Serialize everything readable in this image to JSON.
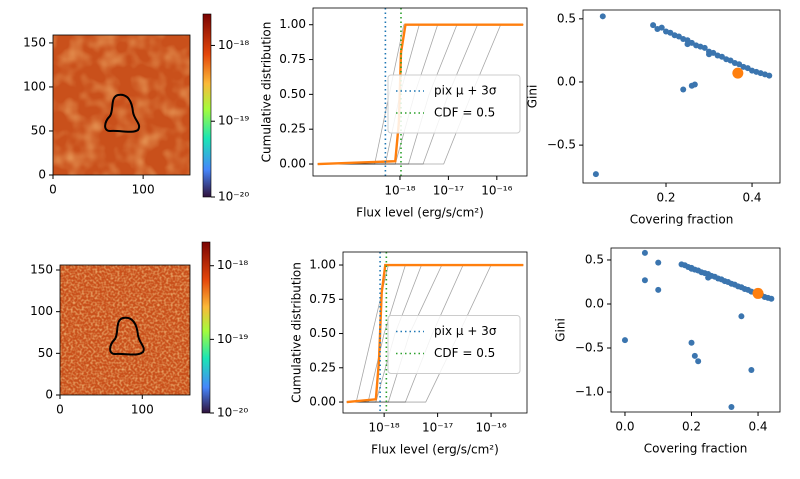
{
  "chart_data": [
    {
      "type": "heatmap",
      "xlim": [
        0,
        152
      ],
      "ylim": [
        0,
        159
      ],
      "xticks": [
        0,
        100
      ],
      "yticks": [
        0,
        50,
        100,
        150
      ],
      "colorbar": {
        "log": true,
        "lim": [
          1e-20,
          2.6e-18
        ],
        "ticks": [
          {
            "value": 1e-18,
            "label": "10⁻¹⁸"
          },
          {
            "value": 1e-19,
            "label": "10⁻¹⁹"
          },
          {
            "value": 1e-20,
            "label": "10⁻²⁰"
          }
        ]
      }
    },
    {
      "type": "line",
      "xlabel": "Flux level (erg/s/cm²)",
      "ylabel": "Cumulative distribution",
      "xlog": true,
      "xlim": [
        1.6e-20,
        4.2e-16
      ],
      "ylim": [
        -0.086,
        1.12
      ],
      "xticks": [
        {
          "value": 1e-18,
          "label": "10⁻¹⁸"
        },
        {
          "value": 1e-17,
          "label": "10⁻¹⁷"
        },
        {
          "value": 1e-16,
          "label": "10⁻¹⁶"
        }
      ],
      "yticks": [
        {
          "value": 0,
          "label": "0.00"
        },
        {
          "value": 0.25,
          "label": "0.25"
        },
        {
          "value": 0.5,
          "label": "0.50"
        },
        {
          "value": 0.75,
          "label": "0.75"
        },
        {
          "value": 1,
          "label": "1.00"
        }
      ],
      "series": [
        {
          "color": "#000000",
          "x": [
            2e-20,
            3e-19,
            6e-19,
            1.2e-18,
            3.5e-16
          ],
          "values": [
            0,
            0,
            0.5,
            1,
            1
          ]
        },
        {
          "color": "#000000",
          "x": [
            2e-20,
            5e-19,
            1e-18,
            2.5e-18,
            3.5e-16
          ],
          "values": [
            0,
            0,
            0.5,
            1,
            1
          ]
        },
        {
          "color": "#000000",
          "x": [
            2e-20,
            8e-19,
            2e-18,
            6e-18,
            3.5e-16
          ],
          "values": [
            0,
            0,
            0.5,
            1,
            1
          ]
        },
        {
          "color": "#000000",
          "x": [
            2e-20,
            1.5e-18,
            4e-18,
            1.5e-17,
            3.5e-16
          ],
          "values": [
            0,
            0,
            0.5,
            1,
            1
          ]
        },
        {
          "color": "#000000",
          "x": [
            2e-20,
            3e-18,
            1e-17,
            4e-17,
            3.5e-16
          ],
          "values": [
            0,
            0,
            0.5,
            1,
            1
          ]
        },
        {
          "color": "#000000",
          "x": [
            2e-20,
            8e-18,
            3e-17,
            1.2e-16,
            3.5e-16
          ],
          "values": [
            0,
            0,
            0.5,
            1,
            1
          ]
        },
        {
          "color": "#ff7f0e",
          "x": [
            2e-20,
            8e-19,
            9.5e-19,
            1.05e-18,
            1.3e-18,
            3.5e-16
          ],
          "values": [
            0,
            0.02,
            0.3,
            0.8,
            1,
            1
          ]
        }
      ],
      "vlines": [
        {
          "name": "pix μ + 3σ",
          "color": "#1f77b4",
          "x": 5e-19
        },
        {
          "name": "CDF  = 0.5",
          "color": "#2ca02c",
          "x": 1.05e-18
        }
      ],
      "legend": "center right"
    },
    {
      "type": "scatter",
      "xlabel": "Covering fraction",
      "ylabel": "Gini",
      "xlim": [
        0.007,
        0.465
      ],
      "ylim": [
        -0.8,
        0.57
      ],
      "xticks": [
        0.2,
        0.4
      ],
      "yticks": [
        0.5,
        {
          "value": 0,
          "label": "0.0"
        },
        {
          "value": -0.5,
          "label": "−0.5"
        }
      ],
      "series": [
        {
          "color": "#3b75af",
          "x": [
            0.17,
            0.18,
            0.19,
            0.2,
            0.21,
            0.22,
            0.23,
            0.24,
            0.25,
            0.26,
            0.27,
            0.28,
            0.29,
            0.3,
            0.31,
            0.32,
            0.33,
            0.34,
            0.35,
            0.36,
            0.37,
            0.38,
            0.39,
            0.4,
            0.41,
            0.42,
            0.43,
            0.44,
            0.25,
            0.3,
            0.037,
            0.053,
            0.24,
            0.267,
            0.26
          ],
          "values": [
            0.45,
            0.42,
            0.43,
            0.4,
            0.39,
            0.37,
            0.36,
            0.34,
            0.33,
            0.31,
            0.29,
            0.28,
            0.27,
            0.24,
            0.23,
            0.21,
            0.2,
            0.18,
            0.17,
            0.15,
            0.14,
            0.12,
            0.11,
            0.09,
            0.08,
            0.07,
            0.06,
            0.05,
            0.3,
            0.22,
            -0.73,
            0.52,
            -0.06,
            -0.02,
            -0.03
          ]
        },
        {
          "color": "#ff7f0e",
          "x": [
            0.367
          ],
          "values": [
            0.07
          ]
        }
      ]
    },
    {
      "type": "heatmap",
      "xlim": [
        0,
        158
      ],
      "ylim": [
        0,
        156
      ],
      "xticks": [
        0,
        100
      ],
      "yticks": [
        0,
        50,
        100,
        150
      ],
      "colorbar": {
        "log": true,
        "lim": [
          1e-20,
          2.1e-18
        ],
        "ticks": [
          {
            "value": 1e-18,
            "label": "10⁻¹⁸"
          },
          {
            "value": 1e-19,
            "label": "10⁻¹⁹"
          },
          {
            "value": 1e-20,
            "label": "10⁻²⁰"
          }
        ]
      }
    },
    {
      "type": "line",
      "xlabel": "Flux level (erg/s/cm²)",
      "ylabel": "Cumulative distribution",
      "xlog": true,
      "xlim": [
        1.7e-19,
        4.7e-16
      ],
      "ylim": [
        -0.08,
        1.095
      ],
      "xticks": [
        {
          "value": 1e-18,
          "label": "10⁻¹⁸"
        },
        {
          "value": 1e-17,
          "label": "10⁻¹⁷"
        },
        {
          "value": 1e-16,
          "label": "10⁻¹⁶"
        }
      ],
      "yticks": [
        {
          "value": 0,
          "label": "0.00"
        },
        {
          "value": 0.25,
          "label": "0.25"
        },
        {
          "value": 0.5,
          "label": "0.50"
        },
        {
          "value": 0.75,
          "label": "0.75"
        },
        {
          "value": 1,
          "label": "1.00"
        }
      ],
      "series": [
        {
          "color": "#000000",
          "x": [
            2e-19,
            3e-19,
            6e-19,
            1.2e-18,
            4e-16
          ],
          "values": [
            0,
            0,
            0.5,
            1,
            1
          ]
        },
        {
          "color": "#000000",
          "x": [
            2e-19,
            5e-19,
            1e-18,
            2.5e-18,
            4e-16
          ],
          "values": [
            0,
            0,
            0.5,
            1,
            1
          ]
        },
        {
          "color": "#000000",
          "x": [
            2e-19,
            7e-19,
            1.6e-18,
            5e-18,
            4e-16
          ],
          "values": [
            0,
            0,
            0.5,
            1,
            1
          ]
        },
        {
          "color": "#000000",
          "x": [
            2e-19,
            1.2e-18,
            3e-18,
            1.2e-17,
            4e-16
          ],
          "values": [
            0,
            0,
            0.5,
            1,
            1
          ]
        },
        {
          "color": "#000000",
          "x": [
            2e-19,
            2.5e-18,
            8e-18,
            3e-17,
            4e-16
          ],
          "values": [
            0,
            0,
            0.5,
            1,
            1
          ]
        },
        {
          "color": "#000000",
          "x": [
            2e-19,
            6e-18,
            2.5e-17,
            1e-16,
            4e-16
          ],
          "values": [
            0,
            0,
            0.5,
            1,
            1
          ]
        },
        {
          "color": "#ff7f0e",
          "x": [
            2e-19,
            7e-19,
            8e-19,
            9e-19,
            1.05e-18,
            4e-16
          ],
          "values": [
            0,
            0.02,
            0.3,
            0.8,
            1,
            1
          ]
        }
      ],
      "vlines": [
        {
          "name": "pix μ + 3σ",
          "color": "#1f77b4",
          "x": 8.4e-19
        },
        {
          "name": "CDF  = 0.5",
          "color": "#2ca02c",
          "x": 1.1e-18
        }
      ],
      "legend": "center right"
    },
    {
      "type": "scatter",
      "xlabel": "Covering fraction",
      "ylabel": "Gini",
      "xlim": [
        -0.042,
        0.466
      ],
      "ylim": [
        -1.227,
        0.636
      ],
      "xticks": [
        {
          "value": 0,
          "label": "0.0"
        },
        0.2,
        0.4
      ],
      "yticks": [
        0.5,
        {
          "value": 0,
          "label": "0.0"
        },
        {
          "value": -0.5,
          "label": "−0.5"
        },
        {
          "value": -1,
          "label": "−1.0"
        }
      ],
      "series": [
        {
          "color": "#3b75af",
          "x": [
            0.17,
            0.18,
            0.19,
            0.2,
            0.21,
            0.22,
            0.23,
            0.24,
            0.25,
            0.26,
            0.27,
            0.28,
            0.29,
            0.3,
            0.31,
            0.32,
            0.33,
            0.34,
            0.35,
            0.36,
            0.37,
            0.38,
            0.39,
            0.4,
            0.41,
            0.42,
            0.43,
            0.44,
            0.2,
            0.25,
            0.0,
            0.06,
            0.06,
            0.1,
            0.1,
            0.2,
            0.21,
            0.22,
            0.35,
            0.38,
            0.32
          ],
          "values": [
            0.45,
            0.44,
            0.42,
            0.41,
            0.39,
            0.38,
            0.36,
            0.35,
            0.34,
            0.32,
            0.31,
            0.29,
            0.28,
            0.26,
            0.25,
            0.23,
            0.22,
            0.2,
            0.19,
            0.17,
            0.16,
            0.14,
            0.13,
            0.11,
            0.1,
            0.08,
            0.07,
            0.06,
            0.4,
            0.3,
            -0.41,
            0.58,
            0.27,
            0.47,
            0.16,
            -0.44,
            -0.59,
            -0.65,
            -0.14,
            -0.75,
            -1.17
          ]
        },
        {
          "color": "#ff7f0e",
          "x": [
            0.4
          ],
          "values": [
            0.12
          ]
        }
      ]
    }
  ]
}
